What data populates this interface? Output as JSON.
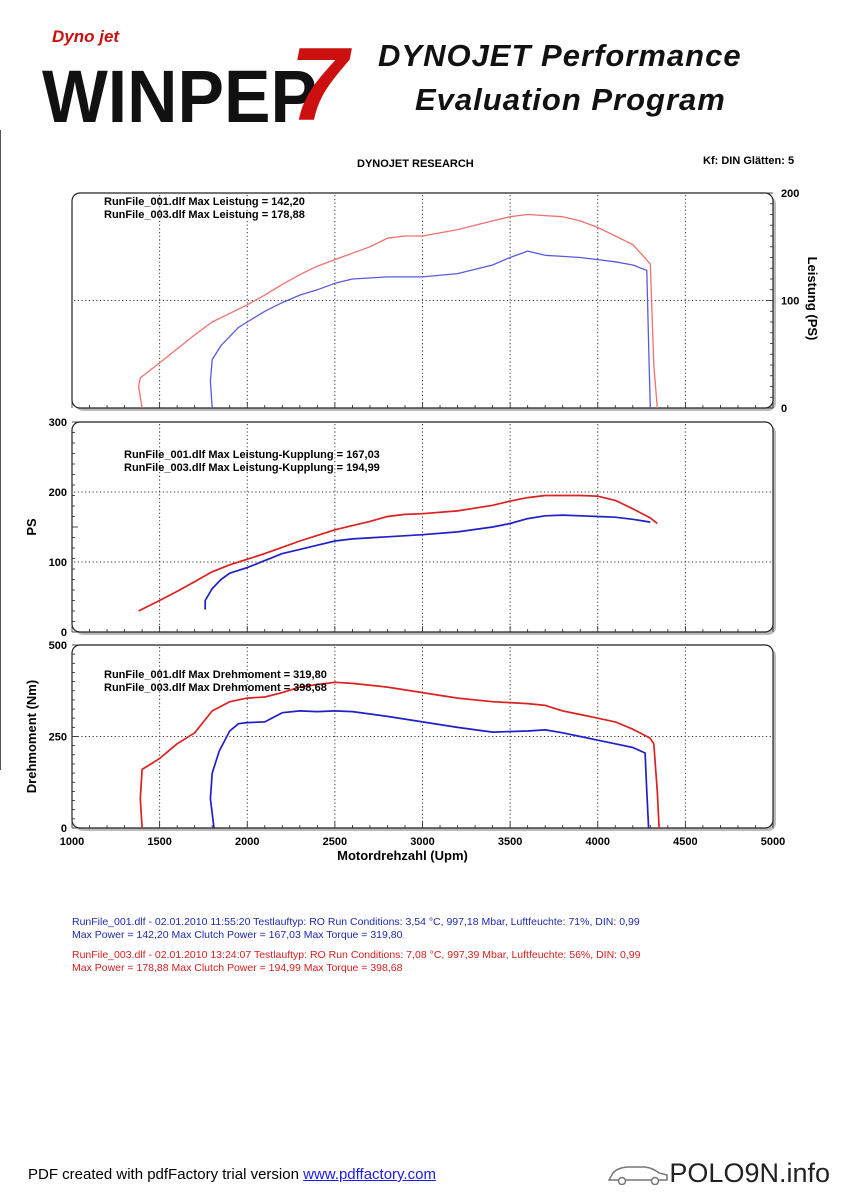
{
  "header": {
    "logo_top": "Dyno jet",
    "logo_main": "WINPEP",
    "logo_num": "7",
    "title_line1": "DYNOJET Performance",
    "title_line2": "Evaluation Program",
    "research": "DYNOJET RESEARCH",
    "settings": "Kf: DIN  Glätten: 5"
  },
  "colors": {
    "run1": "#2020c8",
    "run2": "#dd2020",
    "run1_light": "#5a5ae0",
    "run2_light": "#f07070",
    "grid": "#333333"
  },
  "chart_data": [
    {
      "type": "line",
      "ylabel": "Leistung  (PS)",
      "ylim": [
        0,
        200
      ],
      "yticks": [
        0,
        100,
        200
      ],
      "xlim": [
        1000,
        5000
      ],
      "legend": [
        "RunFile_001.dlf Max Leistung = 142,20",
        "RunFile_003.dlf Max Leistung = 178,88"
      ],
      "series": [
        {
          "name": "RunFile_001.dlf",
          "x": [
            1800,
            1790,
            1800,
            1850,
            1950,
            2000,
            2100,
            2200,
            2300,
            2400,
            2500,
            2600,
            2800,
            3000,
            3200,
            3400,
            3500,
            3600,
            3700,
            3800,
            3900,
            4000,
            4100,
            4200,
            4280,
            4290,
            4300
          ],
          "y": [
            0,
            25,
            45,
            58,
            75,
            80,
            90,
            98,
            105,
            110,
            116,
            120,
            122,
            122,
            125,
            133,
            140,
            146,
            142,
            141,
            140,
            138,
            136,
            133,
            128,
            60,
            0
          ]
        },
        {
          "name": "RunFile_003.dlf",
          "x": [
            1400,
            1380,
            1390,
            1500,
            1600,
            1700,
            1800,
            1900,
            2000,
            2100,
            2200,
            2300,
            2400,
            2500,
            2600,
            2700,
            2800,
            2900,
            3000,
            3200,
            3400,
            3500,
            3600,
            3700,
            3800,
            3900,
            4000,
            4100,
            4200,
            4300,
            4320,
            4340
          ],
          "y": [
            0,
            20,
            28,
            42,
            55,
            68,
            80,
            88,
            96,
            105,
            115,
            124,
            132,
            138,
            144,
            150,
            158,
            160,
            160,
            166,
            174,
            178,
            180,
            179,
            178,
            174,
            168,
            160,
            152,
            134,
            40,
            0
          ]
        }
      ]
    },
    {
      "type": "line",
      "ylabel": "PS",
      "ylim": [
        0,
        300
      ],
      "yticks": [
        0,
        100,
        200,
        300
      ],
      "xlim": [
        1000,
        5000
      ],
      "legend": [
        "RunFile_001.dlf Max Leistung-Kupplung = 167,03",
        "RunFile_003.dlf Max Leistung-Kupplung = 194,99"
      ],
      "series": [
        {
          "name": "RunFile_001.dlf",
          "x": [
            1760,
            1760,
            1800,
            1850,
            1900,
            2000,
            2100,
            2200,
            2300,
            2400,
            2500,
            2600,
            2800,
            3000,
            3200,
            3400,
            3500,
            3600,
            3700,
            3800,
            3900,
            4000,
            4100,
            4200,
            4300
          ],
          "y": [
            32,
            45,
            62,
            75,
            84,
            92,
            102,
            112,
            118,
            124,
            130,
            133,
            136,
            139,
            143,
            150,
            155,
            162,
            166,
            167,
            166,
            165,
            164,
            161,
            157
          ]
        },
        {
          "name": "RunFile_003.dlf",
          "x": [
            1380,
            1500,
            1600,
            1700,
            1800,
            1900,
            2000,
            2100,
            2200,
            2300,
            2400,
            2500,
            2600,
            2700,
            2800,
            2900,
            3000,
            3200,
            3400,
            3500,
            3600,
            3700,
            3800,
            3900,
            4000,
            4100,
            4200,
            4300,
            4340
          ],
          "y": [
            30,
            45,
            58,
            72,
            86,
            96,
            104,
            112,
            121,
            130,
            138,
            146,
            152,
            158,
            165,
            168,
            169,
            173,
            181,
            187,
            192,
            195,
            195,
            195,
            194,
            188,
            176,
            163,
            155
          ]
        }
      ]
    },
    {
      "type": "line",
      "ylabel": "Drehmoment (Nm)",
      "xlabel": "Motordrehzahl (Upm)",
      "ylim": [
        0,
        500
      ],
      "yticks": [
        0,
        250,
        500
      ],
      "xlim": [
        1000,
        5000
      ],
      "xticks": [
        1000,
        1500,
        2000,
        2500,
        3000,
        3500,
        4000,
        4500,
        5000
      ],
      "legend": [
        "RunFile_001.dlf Max Drehmoment = 319,80",
        "RunFile_003.dlf Max Drehmoment = 398,68"
      ],
      "series": [
        {
          "name": "RunFile_001.dlf",
          "x": [
            1810,
            1790,
            1800,
            1840,
            1900,
            1950,
            2000,
            2100,
            2200,
            2300,
            2400,
            2500,
            2600,
            2800,
            3000,
            3200,
            3400,
            3600,
            3700,
            3800,
            3900,
            4000,
            4100,
            4200,
            4270,
            4280,
            4290
          ],
          "y": [
            0,
            80,
            150,
            210,
            265,
            285,
            288,
            290,
            315,
            320,
            318,
            320,
            318,
            305,
            290,
            275,
            262,
            265,
            268,
            260,
            250,
            240,
            230,
            220,
            205,
            100,
            0
          ]
        },
        {
          "name": "RunFile_003.dlf",
          "x": [
            1400,
            1390,
            1400,
            1450,
            1500,
            1600,
            1700,
            1800,
            1900,
            2000,
            2100,
            2200,
            2300,
            2400,
            2500,
            2600,
            2800,
            3000,
            3200,
            3400,
            3600,
            3700,
            3800,
            3900,
            4000,
            4100,
            4200,
            4300,
            4320,
            4340,
            4350
          ],
          "y": [
            0,
            80,
            160,
            175,
            190,
            230,
            260,
            320,
            345,
            355,
            358,
            370,
            385,
            392,
            398,
            395,
            385,
            370,
            355,
            345,
            340,
            335,
            320,
            310,
            300,
            290,
            270,
            245,
            230,
            100,
            0
          ]
        }
      ]
    }
  ],
  "run_info": {
    "run1_line1": "RunFile_001.dlf - 02.01.2010 11:55:20  Testlauftyp: RO  Run Conditions: 3,54 °C, 997,18 Mbar,  Luftfeuchte: 71%, DIN: 0,99",
    "run1_line2": "Max Power = 142,20  Max Clutch Power = 167,03  Max Torque = 319,80",
    "run2_line1": "RunFile_003.dlf - 02.01.2010 13:24:07  Testlauftyp: RO  Run Conditions: 7,08 °C, 997,39 Mbar,  Luftfeuchte: 56%, DIN: 0,99",
    "run2_line2": "Max Power = 178,88  Max Clutch Power = 194,99  Max Torque = 398,68"
  },
  "footer": {
    "pdf_text": "PDF created with pdfFactory trial version ",
    "pdf_link": "www.pdffactory.com",
    "brand": "POLO9N.info"
  }
}
